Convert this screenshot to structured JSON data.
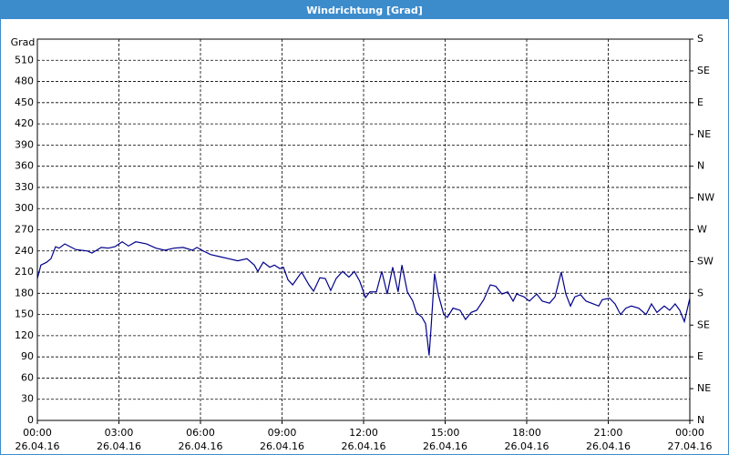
{
  "chart_data": {
    "type": "line",
    "title": "Windrichtung [Grad]",
    "ylabel": "Grad",
    "xlim": [
      0,
      24
    ],
    "xticks": [
      {
        "value": 0,
        "label": "00:00\n26.04.16"
      },
      {
        "value": 3,
        "label": "03:00\n26.04.16"
      },
      {
        "value": 6,
        "label": "06:00\n26.04.16"
      },
      {
        "value": 9,
        "label": "09:00\n26.04.16"
      },
      {
        "value": 12,
        "label": "12:00\n26.04.16"
      },
      {
        "value": 15,
        "label": "15:00\n26.04.16"
      },
      {
        "value": 18,
        "label": "18:00\n26.04.16"
      },
      {
        "value": 21,
        "label": "21:00\n26.04.16"
      },
      {
        "value": 24,
        "label": "00:00\n27.04.16"
      }
    ],
    "ylim": [
      0,
      540
    ],
    "yticks": [
      0,
      30,
      60,
      90,
      120,
      150,
      180,
      210,
      240,
      270,
      300,
      330,
      360,
      390,
      420,
      450,
      480,
      510
    ],
    "y2lim": [
      0,
      540
    ],
    "y2ticks": [
      {
        "value": 0,
        "label": "N"
      },
      {
        "value": 45,
        "label": "NE"
      },
      {
        "value": 90,
        "label": "E"
      },
      {
        "value": 135,
        "label": "SE"
      },
      {
        "value": 180,
        "label": "S"
      },
      {
        "value": 225,
        "label": "SW"
      },
      {
        "value": 270,
        "label": "W"
      },
      {
        "value": 315,
        "label": "NW"
      },
      {
        "value": 360,
        "label": "N"
      },
      {
        "value": 405,
        "label": "NE"
      },
      {
        "value": 450,
        "label": "E"
      },
      {
        "value": 495,
        "label": "SE"
      },
      {
        "value": 540,
        "label": "S"
      }
    ],
    "grid": true,
    "series": [
      {
        "color": "#00008b",
        "x": [
          0,
          0.13,
          0.34,
          0.5,
          0.67,
          0.8,
          1.01,
          1.21,
          1.41,
          1.84,
          2.01,
          2.35,
          2.61,
          2.85,
          3.12,
          3.35,
          3.62,
          4.02,
          4.36,
          4.69,
          5.03,
          5.36,
          5.7,
          5.87,
          6.1,
          6.37,
          6.7,
          7.04,
          7.37,
          7.71,
          7.98,
          8.11,
          8.31,
          8.55,
          8.72,
          8.92,
          9.05,
          9.22,
          9.39,
          9.72,
          9.99,
          10.16,
          10.39,
          10.59,
          10.79,
          10.99,
          11.23,
          11.46,
          11.66,
          11.86,
          12.07,
          12.23,
          12.47,
          12.67,
          12.87,
          13.07,
          13.27,
          13.41,
          13.61,
          13.81,
          13.94,
          14.15,
          14.28,
          14.41,
          14.48,
          14.61,
          14.75,
          14.95,
          15.08,
          15.29,
          15.55,
          15.75,
          15.96,
          16.16,
          16.42,
          16.66,
          16.86,
          17.09,
          17.3,
          17.5,
          17.63,
          17.9,
          18.1,
          18.37,
          18.57,
          18.84,
          19.04,
          19.27,
          19.44,
          19.61,
          19.77,
          19.98,
          20.18,
          20.45,
          20.65,
          20.78,
          21.05,
          21.25,
          21.45,
          21.65,
          21.85,
          22.12,
          22.39,
          22.59,
          22.79,
          23.06,
          23.26,
          23.46,
          23.63,
          23.8,
          24
        ],
        "values": [
          201,
          220,
          224,
          229,
          246,
          244,
          250,
          246,
          242,
          240,
          237,
          245,
          244,
          246,
          253,
          247,
          253,
          250,
          244,
          241,
          244,
          245,
          241,
          245,
          240,
          235,
          232,
          229,
          226,
          229,
          220,
          211,
          224,
          217,
          220,
          215,
          217,
          199,
          192,
          210,
          192,
          183,
          202,
          201,
          184,
          201,
          211,
          203,
          211,
          197,
          174,
          182,
          182,
          211,
          179,
          217,
          182,
          220,
          182,
          169,
          153,
          146,
          137,
          92,
          130,
          208,
          178,
          150,
          146,
          159,
          156,
          143,
          153,
          156,
          171,
          192,
          190,
          179,
          182,
          169,
          179,
          175,
          169,
          179,
          169,
          166,
          175,
          210,
          179,
          162,
          175,
          178,
          169,
          165,
          162,
          171,
          173,
          165,
          150,
          159,
          162,
          159,
          150,
          165,
          153,
          162,
          156,
          165,
          156,
          140,
          173
        ]
      }
    ]
  }
}
